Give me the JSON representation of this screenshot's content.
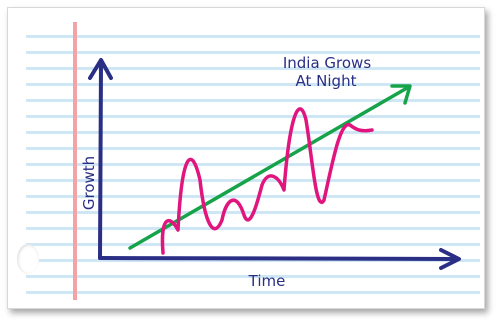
{
  "diagram": {
    "title_line1": "India Grows",
    "title_line2": "At Night",
    "y_axis_label": "Growth",
    "x_axis_label": "Time"
  },
  "colors": {
    "axis": "#2a2f85",
    "trend_arrow": "#16a34a",
    "wave_line": "#e0157d",
    "notebook_rule": "#cfe7f5",
    "notebook_margin": "#f3a3a6"
  }
}
